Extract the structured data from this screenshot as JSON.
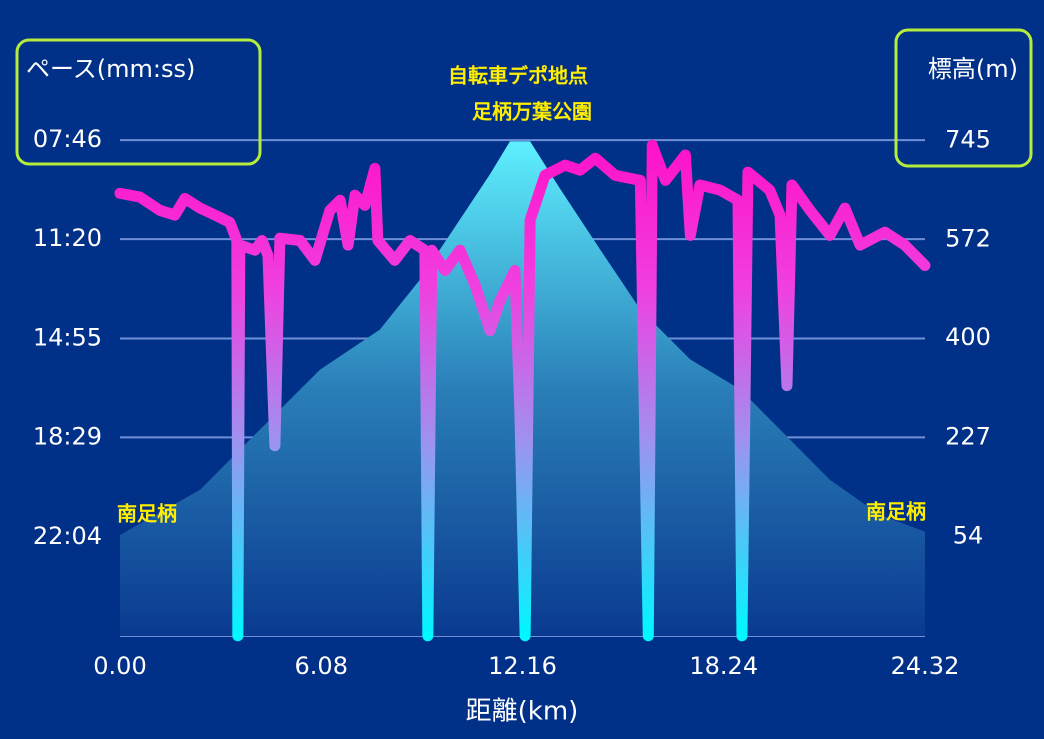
{
  "chart_data": {
    "type": "line",
    "y_title": "ペース(mm:ss)",
    "y2_title": "標高(m)",
    "x_title": "距離(km)",
    "annotations": [
      {
        "text": "自転車デポ地点",
        "x": 12.16,
        "y": 745
      },
      {
        "text": "足柄万葉公園",
        "x": 12.16,
        "y": 745
      },
      {
        "text": "南足柄",
        "x": 0,
        "y": 54
      },
      {
        "text": "南足柄",
        "x": 24.32,
        "y": 54
      }
    ],
    "xlim": [
      0,
      24.32
    ],
    "xticks": [
      {
        "value": 0,
        "label": "0.00"
      },
      6.08,
      12.16,
      18.24,
      24.32
    ],
    "ylim": [
      1538.5,
      251.5
    ],
    "yticks": [
      {
        "value": 466,
        "label": "07:46"
      },
      {
        "value": 680,
        "label": "11:20"
      },
      {
        "value": 895,
        "label": "14:55"
      },
      {
        "value": 1109,
        "label": "18:29"
      },
      {
        "value": 1324,
        "label": "22:04"
      }
    ],
    "y2lim": [
      -119,
      918
    ],
    "y2ticks": [
      745,
      572,
      400,
      227,
      54
    ],
    "grid": true,
    "series": [
      {
        "kind": "area",
        "axis": "y2",
        "color": "#5ee8f5",
        "x": [
          0,
          2.42,
          4.23,
          6.04,
          7.85,
          9.06,
          10.27,
          11.18,
          11.78,
          12.39,
          13.3,
          14.5,
          15.72,
          17.23,
          18.73,
          19.94,
          21.45,
          22.96,
          24.32
        ],
        "values": [
          57,
          136,
          241,
          345,
          415,
          502,
          607,
          686,
          743,
          743,
          660,
          555,
          450,
          363,
          311,
          241,
          153,
          92,
          63
        ]
      },
      {
        "kind": "line",
        "axis": "y",
        "color": "#ff22cc",
        "x": [
          0,
          0.6,
          1.21,
          1.66,
          1.96,
          2.42,
          2.87,
          3.32,
          3.53,
          3.56,
          3.62,
          4.08,
          4.29,
          4.47,
          4.68,
          4.83,
          5.44,
          5.89,
          6.34,
          6.65,
          6.89,
          7.1,
          7.4,
          7.7,
          7.79,
          8.3,
          8.76,
          9.21,
          9.3,
          9.42,
          9.82,
          10.27,
          10.73,
          11.18,
          11.48,
          11.93,
          12.08,
          12.24,
          12.39,
          12.84,
          13.45,
          13.9,
          14.36,
          14.96,
          15.72,
          15.96,
          16.08,
          16.48,
          17.08,
          17.23,
          17.52,
          18.13,
          18.67,
          18.79,
          18.97,
          19.63,
          19.94,
          20.15,
          20.3,
          20.85,
          21.45,
          21.9,
          22.36,
          23.11,
          23.71,
          24.32
        ],
        "values": [
          581,
          589,
          618,
          628,
          592,
          613,
          628,
          644,
          683,
          1538,
          693,
          704,
          683,
          715,
          1127,
          678,
          683,
          726,
          618,
          596,
          693,
          585,
          607,
          527,
          683,
          726,
          683,
          704,
          1538,
          704,
          748,
          704,
          780,
          878,
          813,
          748,
          1051,
          1538,
          639,
          542,
          520,
          531,
          505,
          542,
          553,
          1538,
          477,
          553,
          498,
          672,
          563,
          574,
          596,
          1538,
          535,
          574,
          628,
          997,
          563,
          618,
          672,
          613,
          693,
          665,
          693,
          737
        ]
      }
    ]
  }
}
